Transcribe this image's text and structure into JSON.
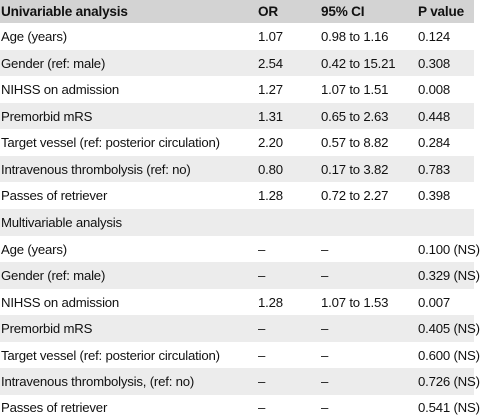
{
  "header": {
    "label": "Univariable analysis",
    "or": "OR",
    "ci": "95% CI",
    "p": "P value"
  },
  "univariable_rows": [
    {
      "label": "Age (years)",
      "or": "1.07",
      "ci": "0.98 to 1.16",
      "p": "0.124"
    },
    {
      "label": "Gender (ref: male)",
      "or": "2.54",
      "ci": "0.42 to 15.21",
      "p": "0.308"
    },
    {
      "label": "NIHSS on admission",
      "or": "1.27",
      "ci": "1.07 to 1.51",
      "p": "0.008"
    },
    {
      "label": "Premorbid mRS",
      "or": "1.31",
      "ci": "0.65 to 2.63",
      "p": "0.448"
    },
    {
      "label": "Target vessel (ref: posterior circulation)",
      "or": "2.20",
      "ci": "0.57 to 8.82",
      "p": "0.284"
    },
    {
      "label": "Intravenous thrombolysis (ref: no)",
      "or": "0.80",
      "ci": "0.17 to 3.82",
      "p": "0.783"
    },
    {
      "label": "Passes of retriever",
      "or": "1.28",
      "ci": "0.72 to 2.27",
      "p": "0.398"
    }
  ],
  "multivariable_title": "Multivariable analysis",
  "multivariable_rows": [
    {
      "label": "Age (years)",
      "or": "–",
      "ci": "–",
      "p": "0.100 (NS)"
    },
    {
      "label": "Gender (ref: male)",
      "or": "–",
      "ci": "–",
      "p": "0.329 (NS)"
    },
    {
      "label": "NIHSS on admission",
      "or": "1.28",
      "ci": "1.07 to 1.53",
      "p": "0.007"
    },
    {
      "label": "Premorbid mRS",
      "or": "–",
      "ci": "–",
      "p": "0.405 (NS)"
    },
    {
      "label": "Target vessel (ref: posterior circulation)",
      "or": "–",
      "ci": "–",
      "p": "0.600 (NS)"
    },
    {
      "label": "Intravenous thrombolysis, (ref: no)",
      "or": "–",
      "ci": "–",
      "p": "0.726 (NS)"
    },
    {
      "label": "Passes of retriever",
      "or": "–",
      "ci": "–",
      "p": "0.541 (NS)"
    }
  ]
}
